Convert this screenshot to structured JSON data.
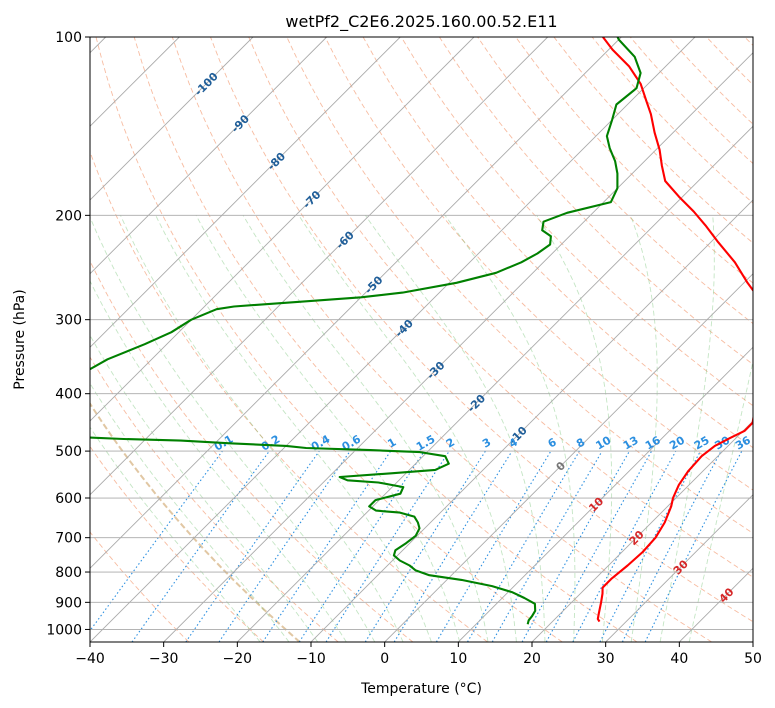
{
  "chart_data": {
    "type": "line",
    "title": "wetPf2_C2E6.2025.160.00.52.E11",
    "xlabel": "Temperature (°C)",
    "ylabel": "Pressure (hPa)",
    "xlim": [
      -40,
      50
    ],
    "ylim": [
      1050,
      100
    ],
    "y_scale": "log",
    "x_ticks": [
      -40,
      -30,
      -20,
      -10,
      0,
      10,
      20,
      30,
      40,
      50
    ],
    "x_tick_labels": [
      "−40",
      "−30",
      "−20",
      "−10",
      "0",
      "10",
      "20",
      "30",
      "40",
      "50"
    ],
    "y_ticks": [
      100,
      200,
      300,
      400,
      500,
      600,
      700,
      800,
      900,
      1000
    ],
    "y_tick_labels": [
      "100",
      "200",
      "300",
      "400",
      "500",
      "600",
      "700",
      "800",
      "900",
      "1000"
    ],
    "grid": true,
    "skew": 1.0,
    "isotherm_labels": [
      {
        "text": "-100",
        "t": -100,
        "p": 120
      },
      {
        "text": "-90",
        "t": -90,
        "p": 140
      },
      {
        "text": "-80",
        "t": -80,
        "p": 162
      },
      {
        "text": "-70",
        "t": -70,
        "p": 188
      },
      {
        "text": "-60",
        "t": -60,
        "p": 220
      },
      {
        "text": "-50",
        "t": -50,
        "p": 262
      },
      {
        "text": "-40",
        "t": -40,
        "p": 310
      },
      {
        "text": "-30",
        "t": -30,
        "p": 365
      },
      {
        "text": "-20",
        "t": -20,
        "p": 415
      },
      {
        "text": "-10",
        "t": -10,
        "p": 470
      },
      {
        "text": "0",
        "t": 0,
        "p": 530
      },
      {
        "text": "10",
        "t": 10,
        "p": 615
      },
      {
        "text": "20",
        "t": 20,
        "p": 700
      },
      {
        "text": "30",
        "t": 30,
        "p": 785
      },
      {
        "text": "40",
        "t": 40,
        "p": 875
      }
    ],
    "mixing_ratio_labels": [
      "0.1",
      "0.2",
      "0.4",
      "0.6",
      "1",
      "1.5",
      "2",
      "3",
      "4",
      "6",
      "8",
      "10",
      "13",
      "16",
      "20",
      "25",
      "30",
      "36"
    ],
    "mixing_ratio_values": [
      0.1,
      0.2,
      0.4,
      0.6,
      1,
      1.5,
      2,
      3,
      4,
      6,
      8,
      10,
      13,
      16,
      20,
      25,
      30,
      36
    ],
    "series": [
      {
        "color": "#ff0000",
        "points": [
          [
            26.4,
            970
          ],
          [
            25.8,
            960
          ],
          [
            25.2,
            940
          ],
          [
            24.0,
            900
          ],
          [
            23.0,
            870
          ],
          [
            22.2,
            850
          ],
          [
            22.2,
            820
          ],
          [
            22.6,
            780
          ],
          [
            22.8,
            740
          ],
          [
            22.6,
            700
          ],
          [
            21.8,
            660
          ],
          [
            20.5,
            620
          ],
          [
            19.6,
            600
          ],
          [
            18.6,
            570
          ],
          [
            18.0,
            540
          ],
          [
            17.8,
            510
          ],
          [
            18.2,
            490
          ],
          [
            19.2,
            475
          ],
          [
            20.2,
            462
          ],
          [
            20.2,
            448
          ],
          [
            19.0,
            430
          ],
          [
            17.5,
            410
          ],
          [
            16.4,
            390
          ],
          [
            15.2,
            375
          ],
          [
            14.0,
            355
          ],
          [
            13.2,
            335
          ],
          [
            11.5,
            315
          ],
          [
            9.5,
            300
          ],
          [
            5.0,
            280
          ],
          [
            0.5,
            260
          ],
          [
            -4.0,
            240
          ],
          [
            -9.0,
            222
          ],
          [
            -13.0,
            208
          ],
          [
            -16.5,
            197
          ],
          [
            -20.5,
            186
          ],
          [
            -24.5,
            175
          ],
          [
            -27.0,
            165
          ],
          [
            -29.5,
            155
          ],
          [
            -32.5,
            145
          ],
          [
            -35.5,
            135
          ],
          [
            -38.0,
            128
          ],
          [
            -41.0,
            120
          ],
          [
            -45.0,
            112
          ],
          [
            -49.5,
            105
          ],
          [
            -52.5,
            100
          ]
        ]
      },
      {
        "color": "#008000",
        "points": [
          [
            17.0,
            980
          ],
          [
            16.6,
            965
          ],
          [
            16.5,
            950
          ],
          [
            16.2,
            930
          ],
          [
            15.2,
            905
          ],
          [
            13.0,
            885
          ],
          [
            10.5,
            865
          ],
          [
            7.0,
            845
          ],
          [
            2.0,
            825
          ],
          [
            -3.0,
            810
          ],
          [
            -5.5,
            795
          ],
          [
            -7.0,
            780
          ],
          [
            -9.0,
            765
          ],
          [
            -10.5,
            750
          ],
          [
            -11.0,
            735
          ],
          [
            -10.5,
            715
          ],
          [
            -10.2,
            695
          ],
          [
            -10.7,
            675
          ],
          [
            -11.7,
            660
          ],
          [
            -13.0,
            645
          ],
          [
            -15.5,
            635
          ],
          [
            -19.0,
            630
          ],
          [
            -20.5,
            620
          ],
          [
            -20.5,
            605
          ],
          [
            -18.0,
            590
          ],
          [
            -18.5,
            575
          ],
          [
            -22.5,
            565
          ],
          [
            -27.0,
            560
          ],
          [
            -28.5,
            553
          ],
          [
            -22.0,
            545
          ],
          [
            -16.5,
            538
          ],
          [
            -15.5,
            525
          ],
          [
            -17.0,
            510
          ],
          [
            -21.0,
            502
          ],
          [
            -28.0,
            498
          ],
          [
            -37.0,
            494
          ],
          [
            -40.0,
            490
          ],
          [
            -48.0,
            485
          ],
          [
            -55.0,
            480
          ],
          [
            -63.0,
            477
          ],
          [
            -72.0,
            472
          ],
          [
            -80.0,
            466
          ],
          [
            -85.0,
            455
          ],
          [
            -86.0,
            440
          ],
          [
            -85.0,
            425
          ],
          [
            -82.5,
            410
          ],
          [
            -79.5,
            390
          ],
          [
            -77.5,
            370
          ],
          [
            -76.0,
            350
          ],
          [
            -73.0,
            330
          ],
          [
            -71.0,
            315
          ],
          [
            -70.0,
            300
          ],
          [
            -68.0,
            288
          ],
          [
            -66.0,
            285
          ],
          [
            -58.0,
            280
          ],
          [
            -50.0,
            275
          ],
          [
            -45.0,
            270
          ],
          [
            -39.0,
            260
          ],
          [
            -35.0,
            250
          ],
          [
            -33.0,
            240
          ],
          [
            -32.0,
            232
          ],
          [
            -31.5,
            224
          ],
          [
            -32.5,
            217
          ],
          [
            -34.5,
            212
          ],
          [
            -35.5,
            205
          ],
          [
            -33.5,
            198
          ],
          [
            -29.0,
            190
          ],
          [
            -30.0,
            180
          ],
          [
            -32.0,
            170
          ],
          [
            -34.0,
            162
          ],
          [
            -36.5,
            154
          ],
          [
            -38.5,
            147
          ],
          [
            -40.0,
            138
          ],
          [
            -41.5,
            130
          ],
          [
            -41.0,
            122
          ],
          [
            -42.5,
            115
          ],
          [
            -45.5,
            108
          ],
          [
            -50.0,
            101
          ],
          [
            -50.5,
            100
          ]
        ]
      }
    ]
  }
}
